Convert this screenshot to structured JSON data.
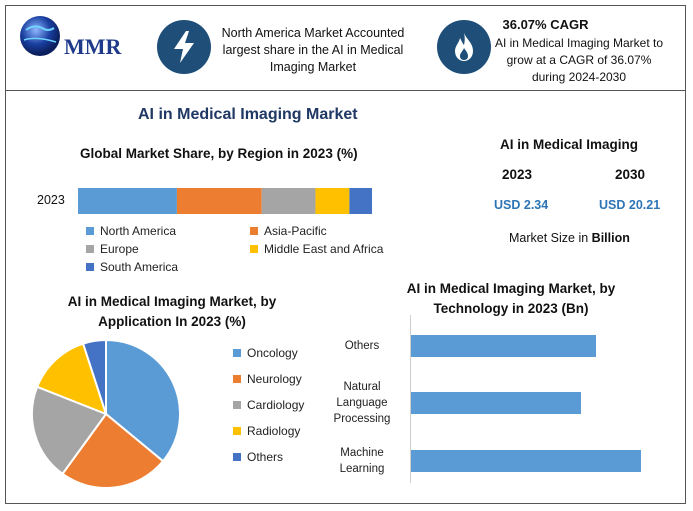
{
  "logo": {
    "text": "MMR"
  },
  "header": {
    "box1_text": "North America Market Accounted largest share in the AI in Medical Imaging Market",
    "box2_title": "36.07% CAGR",
    "box2_text": "AI in Medical Imaging Market to grow at a CAGR of 36.07% during 2024-2030"
  },
  "main_title": "AI in Medical Imaging Market",
  "market_size": {
    "title": "AI in Medical Imaging",
    "year_a": "2023",
    "year_b": "2030",
    "value_a": "USD 2.34",
    "value_b": "USD 20.21",
    "caption_pre": "Market Size in ",
    "caption_bold": "Billion"
  },
  "colors": {
    "blue": "#5b9bd5",
    "orange": "#ed7d31",
    "gray": "#a5a5a5",
    "yellow": "#ffc000",
    "darkblue": "#4472c4",
    "navy": "#1f4e79"
  },
  "icons": [
    "lightning-icon",
    "flame-icon",
    "globe-icon"
  ],
  "chart_data": [
    {
      "type": "bar",
      "orientation": "horizontal-stacked",
      "title": "Global Market Share, by Region in 2023 (%)",
      "categories": [
        "2023"
      ],
      "series": [
        {
          "name": "North America",
          "values": [
            35
          ],
          "color": "#5b9bd5"
        },
        {
          "name": "Asia-Pacific",
          "values": [
            30
          ],
          "color": "#ed7d31"
        },
        {
          "name": "Europe",
          "values": [
            19
          ],
          "color": "#a5a5a5"
        },
        {
          "name": "Middle East and Africa",
          "values": [
            12
          ],
          "color": "#ffc000"
        },
        {
          "name": "South America",
          "values": [
            8
          ],
          "color": "#4472c4"
        }
      ],
      "legend": "bottom"
    },
    {
      "type": "pie",
      "title": "AI in Medical Imaging Market, by Application In 2023 (%)",
      "categories": [
        "Oncology",
        "Neurology",
        "Cardiology",
        "Radiology",
        "Others"
      ],
      "values": [
        36,
        24,
        21,
        14,
        5
      ],
      "colors": [
        "#5b9bd5",
        "#ed7d31",
        "#a5a5a5",
        "#ffc000",
        "#4472c4"
      ],
      "legend": "right"
    },
    {
      "type": "bar",
      "orientation": "horizontal",
      "title": "AI in Medical Imaging Market, by Technology in 2023 (Bn)",
      "categories": [
        "Others",
        "Natural Language Processing",
        "Machine Learning"
      ],
      "category_lines": [
        [
          "Others"
        ],
        [
          "Natural",
          "Language",
          "Processing"
        ],
        [
          "Machine",
          "Learning"
        ]
      ],
      "values": [
        0.74,
        0.68,
        0.92
      ],
      "xlim": [
        0,
        1.0
      ],
      "color": "#5b9bd5",
      "grid": false
    }
  ]
}
